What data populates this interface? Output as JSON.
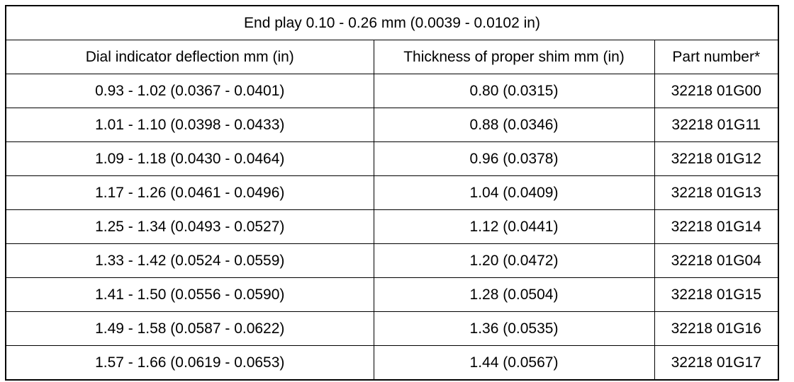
{
  "table": {
    "title": "End play 0.10 - 0.26 mm (0.0039 - 0.0102 in)",
    "headers": [
      "Dial indicator deflection mm (in)",
      "Thickness of proper shim mm (in)",
      "Part number*"
    ],
    "rows": [
      [
        "0.93 - 1.02 (0.0367 - 0.0401)",
        "0.80 (0.0315)",
        "32218 01G00"
      ],
      [
        "1.01 - 1.10 (0.0398 - 0.0433)",
        "0.88 (0.0346)",
        "32218 01G11"
      ],
      [
        "1.09 - 1.18 (0.0430 - 0.0464)",
        "0.96 (0.0378)",
        "32218 01G12"
      ],
      [
        "1.17 - 1.26 (0.0461 - 0.0496)",
        "1.04 (0.0409)",
        "32218 01G13"
      ],
      [
        "1.25 - 1.34 (0.0493 - 0.0527)",
        "1.12 (0.0441)",
        "32218 01G14"
      ],
      [
        "1.33 - 1.42 (0.0524 - 0.0559)",
        "1.20 (0.0472)",
        "32218 01G04"
      ],
      [
        "1.41 - 1.50 (0.0556 - 0.0590)",
        "1.28 (0.0504)",
        "32218 01G15"
      ],
      [
        "1.49 - 1.58 (0.0587 - 0.0622)",
        "1.36 (0.0535)",
        "32218 01G16"
      ],
      [
        "1.57 - 1.66 (0.0619 - 0.0653)",
        "1.44 (0.0567)",
        "32218 01G17"
      ]
    ]
  }
}
